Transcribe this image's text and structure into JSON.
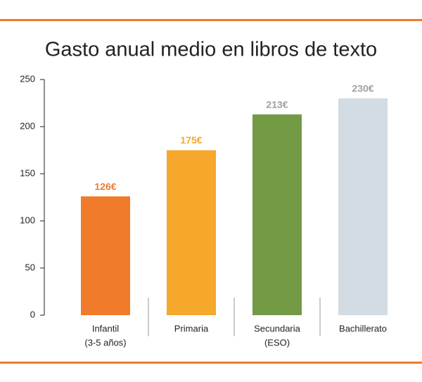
{
  "chart_data": {
    "type": "bar",
    "title": "Gasto anual medio en libros de texto",
    "categories": [
      [
        "Infantil",
        "(3-5 años)"
      ],
      [
        "Primaria"
      ],
      [
        "Secundaria",
        "(ESO)"
      ],
      [
        "Bachillerato"
      ]
    ],
    "values": [
      126,
      175,
      213,
      230
    ],
    "value_labels": [
      "126€",
      "175€",
      "213€",
      "230€"
    ],
    "colors": [
      "#f07b2a",
      "#f5a82b",
      "#739a45",
      "#d2dce2"
    ],
    "label_colors": [
      "#f07b2a",
      "#f5a82b",
      "#a0a0a0",
      "#a0a0a0"
    ],
    "ylim": [
      0,
      250
    ],
    "yticks": [
      0,
      50,
      100,
      150,
      200,
      250
    ],
    "grid": false
  }
}
